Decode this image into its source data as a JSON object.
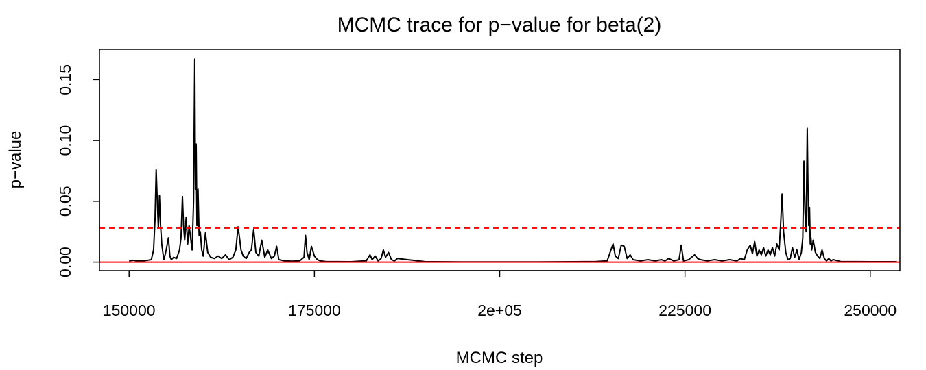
{
  "chart_data": {
    "type": "line",
    "title": "MCMC trace for p−value for beta(2)",
    "xlabel": "MCMC step",
    "ylabel": "p−value",
    "xlim": [
      146000,
      254000
    ],
    "ylim": [
      -0.007,
      0.175
    ],
    "x_ticks": [
      150000,
      175000,
      200000,
      225000,
      250000
    ],
    "x_tick_labels": [
      "150000",
      "175000",
      "2e+05",
      "225000",
      "250000"
    ],
    "y_ticks": [
      0.0,
      0.05,
      0.1,
      0.15
    ],
    "y_tick_labels": [
      "0.00",
      "0.05",
      "0.10",
      "0.15"
    ],
    "grid": false,
    "legend": "none",
    "colors": {
      "trace": "#000000",
      "reference": "#ff0000"
    },
    "series": [
      {
        "x": [
          150000,
          150600,
          151000,
          152000,
          153000,
          153300,
          153500,
          153650,
          153800,
          153950,
          154100,
          154250,
          154400,
          154550,
          154700,
          155000,
          155300,
          155500,
          155700,
          156000,
          156400,
          156800,
          157000,
          157200,
          157350,
          157500,
          157700,
          157900,
          158100,
          158300,
          158500,
          158700,
          158850,
          158950,
          159050,
          159150,
          159300,
          159450,
          159600,
          159800,
          160000,
          160300,
          160600,
          161000,
          161500,
          162000,
          162500,
          163000,
          163500,
          164000,
          164400,
          164700,
          164900,
          165100,
          165400,
          165800,
          166200,
          166500,
          166800,
          167100,
          167500,
          167900,
          168300,
          168700,
          169200,
          169600,
          169900,
          170200,
          171000,
          172000,
          173000,
          173600,
          173800,
          174000,
          174300,
          174600,
          175000,
          175400,
          175800,
          176500,
          178000,
          180000,
          181000,
          182000,
          182500,
          182800,
          183200,
          183600,
          184000,
          184300,
          184600,
          185000,
          185400,
          185800,
          186200,
          190000,
          195000,
          200000,
          205000,
          210000,
          213000,
          214500,
          215300,
          215600,
          216000,
          216400,
          216800,
          217200,
          217600,
          218000,
          219000,
          220000,
          221000,
          221800,
          222300,
          222800,
          223500,
          224200,
          224500,
          224800,
          225500,
          226300,
          226700,
          227100,
          228000,
          229000,
          230000,
          231000,
          232000,
          232500,
          233000,
          233400,
          233800,
          234100,
          234400,
          234700,
          235000,
          235300,
          235600,
          235900,
          236200,
          236500,
          236800,
          237100,
          237400,
          237700,
          237900,
          238100,
          238300,
          238600,
          238900,
          239200,
          239500,
          239800,
          240100,
          240400,
          240700,
          240900,
          241050,
          241200,
          241350,
          241500,
          241600,
          241700,
          241800,
          241900,
          242000,
          242100,
          242300,
          242600,
          242900,
          243200,
          243500,
          243800,
          244100,
          244400,
          244700,
          245000,
          246000,
          248000,
          250000,
          252000,
          253500
        ],
        "y": [
          0.001,
          0.0015,
          0.001,
          0.001,
          0.002,
          0.01,
          0.035,
          0.076,
          0.05,
          0.028,
          0.055,
          0.03,
          0.015,
          0.008,
          0.002,
          0.01,
          0.02,
          0.005,
          0.002,
          0.004,
          0.003,
          0.01,
          0.02,
          0.054,
          0.03,
          0.018,
          0.037,
          0.015,
          0.03,
          0.02,
          0.01,
          0.05,
          0.167,
          0.06,
          0.097,
          0.03,
          0.06,
          0.022,
          0.025,
          0.01,
          0.005,
          0.024,
          0.008,
          0.004,
          0.003,
          0.005,
          0.003,
          0.006,
          0.002,
          0.004,
          0.01,
          0.029,
          0.02,
          0.01,
          0.005,
          0.003,
          0.008,
          0.01,
          0.027,
          0.008,
          0.005,
          0.018,
          0.004,
          0.01,
          0.003,
          0.005,
          0.013,
          0.002,
          0.001,
          0.0008,
          0.001,
          0.004,
          0.022,
          0.008,
          0.002,
          0.013,
          0.005,
          0.002,
          0.001,
          0.0005,
          0.0004,
          0.0003,
          0.0008,
          0.001,
          0.006,
          0.002,
          0.005,
          0.001,
          0.003,
          0.01,
          0.004,
          0.008,
          0.002,
          0.001,
          0.003,
          0.0003,
          0.0002,
          0.0002,
          0.0002,
          0.0003,
          0.0005,
          0.001,
          0.015,
          0.005,
          0.003,
          0.014,
          0.013,
          0.003,
          0.006,
          0.002,
          0.001,
          0.002,
          0.001,
          0.002,
          0.001,
          0.003,
          0.001,
          0.002,
          0.014,
          0.001,
          0.002,
          0.006,
          0.003,
          0.002,
          0.001,
          0.002,
          0.001,
          0.002,
          0.001,
          0.003,
          0.002,
          0.01,
          0.014,
          0.007,
          0.017,
          0.005,
          0.01,
          0.006,
          0.012,
          0.005,
          0.01,
          0.006,
          0.012,
          0.005,
          0.015,
          0.01,
          0.03,
          0.056,
          0.025,
          0.008,
          0.002,
          0.003,
          0.012,
          0.004,
          0.01,
          0.002,
          0.008,
          0.02,
          0.083,
          0.04,
          0.025,
          0.11,
          0.06,
          0.03,
          0.045,
          0.015,
          0.02,
          0.01,
          0.018,
          0.008,
          0.005,
          0.003,
          0.01,
          0.003,
          0.001,
          0.003,
          0.001,
          0.002,
          0.0005,
          0.0004,
          0.0003,
          0.0003,
          0.0003
        ]
      }
    ],
    "reference_lines": [
      {
        "y": 0.028,
        "style": "dashed",
        "color": "#ff0000"
      },
      {
        "y": 0.0,
        "style": "solid",
        "color": "#ff0000"
      }
    ]
  }
}
